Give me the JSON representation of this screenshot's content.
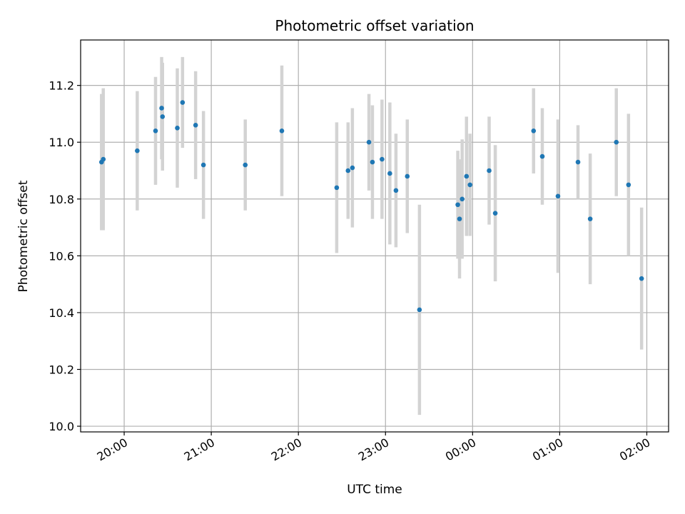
{
  "chart_data": {
    "type": "scatter",
    "title": "Photometric offset variation",
    "xlabel": "UTC time",
    "ylabel": "Photometric offset",
    "x_unit": "UTC hour (values above 24 are after midnight)",
    "xlim": [
      19.5,
      26.25
    ],
    "ylim": [
      9.98,
      11.36
    ],
    "yticks": [
      10.0,
      10.2,
      10.4,
      10.6,
      10.8,
      11.0,
      11.2
    ],
    "ytick_labels": [
      "10.0",
      "10.2",
      "10.4",
      "10.6",
      "10.8",
      "11.0",
      "11.2"
    ],
    "xticks": [
      20,
      21,
      22,
      23,
      24,
      25,
      26
    ],
    "xtick_labels": [
      "20:00",
      "21:00",
      "22:00",
      "23:00",
      "00:00",
      "01:00",
      "02:00"
    ],
    "grid": true,
    "colors": {
      "point": "#1f77b4",
      "errorbar": "#d3d3d3",
      "grid": "#b0b0b0"
    },
    "points": [
      {
        "x": 19.74,
        "y": 10.93,
        "err": 0.24
      },
      {
        "x": 19.76,
        "y": 10.94,
        "err": 0.25
      },
      {
        "x": 20.15,
        "y": 10.97,
        "err": 0.21
      },
      {
        "x": 20.36,
        "y": 11.04,
        "err": 0.19
      },
      {
        "x": 20.43,
        "y": 11.12,
        "err": 0.18
      },
      {
        "x": 20.44,
        "y": 11.09,
        "err": 0.19
      },
      {
        "x": 20.61,
        "y": 11.05,
        "err": 0.21
      },
      {
        "x": 20.67,
        "y": 11.14,
        "err": 0.16
      },
      {
        "x": 20.82,
        "y": 11.06,
        "err": 0.19
      },
      {
        "x": 20.91,
        "y": 10.92,
        "err": 0.19
      },
      {
        "x": 21.39,
        "y": 10.92,
        "err": 0.16
      },
      {
        "x": 21.81,
        "y": 11.04,
        "err": 0.23
      },
      {
        "x": 22.44,
        "y": 10.84,
        "err": 0.23
      },
      {
        "x": 22.57,
        "y": 10.9,
        "err": 0.17
      },
      {
        "x": 22.62,
        "y": 10.91,
        "err": 0.21
      },
      {
        "x": 22.81,
        "y": 11.0,
        "err": 0.17
      },
      {
        "x": 22.85,
        "y": 10.93,
        "err": 0.2
      },
      {
        "x": 22.96,
        "y": 10.94,
        "err": 0.21
      },
      {
        "x": 23.05,
        "y": 10.89,
        "err": 0.25
      },
      {
        "x": 23.12,
        "y": 10.83,
        "err": 0.2
      },
      {
        "x": 23.25,
        "y": 10.88,
        "err": 0.2
      },
      {
        "x": 23.39,
        "y": 10.41,
        "err": 0.37
      },
      {
        "x": 23.83,
        "y": 10.78,
        "err": 0.19
      },
      {
        "x": 23.85,
        "y": 10.73,
        "err": 0.21
      },
      {
        "x": 23.88,
        "y": 10.8,
        "err": 0.21
      },
      {
        "x": 23.93,
        "y": 10.88,
        "err": 0.21
      },
      {
        "x": 23.97,
        "y": 10.85,
        "err": 0.18
      },
      {
        "x": 24.19,
        "y": 10.9,
        "err": 0.19
      },
      {
        "x": 24.26,
        "y": 10.75,
        "err": 0.24
      },
      {
        "x": 24.7,
        "y": 11.04,
        "err": 0.15
      },
      {
        "x": 24.8,
        "y": 10.95,
        "err": 0.17
      },
      {
        "x": 24.98,
        "y": 10.81,
        "err": 0.27
      },
      {
        "x": 25.21,
        "y": 10.93,
        "err": 0.13
      },
      {
        "x": 25.35,
        "y": 10.73,
        "err": 0.23
      },
      {
        "x": 25.65,
        "y": 11.0,
        "err": 0.19
      },
      {
        "x": 25.79,
        "y": 10.85,
        "err": 0.25
      },
      {
        "x": 25.94,
        "y": 10.52,
        "err": 0.25
      }
    ]
  }
}
